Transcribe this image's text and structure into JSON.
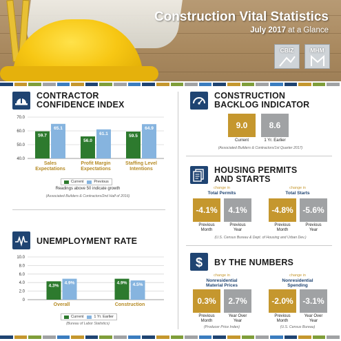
{
  "header": {
    "title": "Construction Vital Statistics",
    "subtitle_bold": "July 2017",
    "subtitle_rest": " at a Glance",
    "logos": [
      "CBIZ",
      "MHM"
    ]
  },
  "strip_colors": [
    "#1f4472",
    "#c5972e",
    "#7f9e3a",
    "#a0a2a4",
    "#3b7dbf",
    "#c5972e",
    "#1f4472",
    "#7f9e3a",
    "#a0a2a4",
    "#3b7dbf",
    "#1f4472",
    "#c5972e",
    "#7f9e3a",
    "#a0a2a4",
    "#3b7dbf",
    "#1f4472",
    "#c5972e",
    "#7f9e3a",
    "#a0a2a4",
    "#3b7dbf",
    "#1f4472",
    "#c5972e",
    "#7f9e3a",
    "#a0a2a4"
  ],
  "colors": {
    "current": "#2d7a2e",
    "previous": "#86b4df",
    "navy": "#1f4472",
    "gold": "#c5972e",
    "grey": "#a0a2a4"
  },
  "contractor": {
    "title_line1": "CONTRACTOR",
    "title_line2": "CONFIDENCE INDEX",
    "icon": "hardhat-icon",
    "note": "Readings above 50 indicate growth",
    "source": "(Associated Builders & Contractors/2nd Half of 2016)",
    "legend": [
      "Current",
      "Previous"
    ]
  },
  "unemployment": {
    "title": "UNEMPLOYMENT RATE",
    "icon": "line-chart-icon",
    "source": "(Bureau of Labor Statistics)",
    "legend": [
      "Current",
      "1 Yr. Earlier"
    ]
  },
  "chart_data": [
    {
      "type": "bar",
      "categories": [
        "Sales Expectations",
        "Profit Margin Expectations",
        "Staffing Level Intentions"
      ],
      "series": [
        {
          "name": "Current",
          "values": [
            59.7,
            56.0,
            59.5
          ],
          "labels": [
            "59.7",
            "56.0",
            "59.5"
          ]
        },
        {
          "name": "Previous",
          "values": [
            65.1,
            61.1,
            64.9
          ],
          "labels": [
            "65.1",
            "61.1",
            "64.9"
          ]
        }
      ],
      "yticks": [
        "40.0",
        "50.0",
        "60.0",
        "70.0"
      ],
      "ylim": [
        40,
        70
      ]
    },
    {
      "type": "bar",
      "categories": [
        "Overall",
        "Construction"
      ],
      "series": [
        {
          "name": "Current",
          "values": [
            4.3,
            4.9
          ],
          "labels": [
            "4.3%",
            "4.9%"
          ]
        },
        {
          "name": "1 Yr. Earlier",
          "values": [
            4.9,
            4.5
          ],
          "labels": [
            "4.9%",
            "4.5%"
          ]
        }
      ],
      "yticks": [
        "0",
        "2.0",
        "4.0",
        "6.0",
        "8.0",
        "10.0"
      ],
      "ylim": [
        0,
        10
      ]
    }
  ],
  "backlog": {
    "title_line1": "CONSTRUCTION",
    "title_line2": "BACKLOG INDICATOR",
    "icon": "gauge-icon",
    "current_value": "9.0",
    "current_label": "Current",
    "earlier_value": "8.6",
    "earlier_label": "1 Yr. Earlier",
    "source": "(Associated Builders & Contractors/1st Quarter 2017)"
  },
  "housing": {
    "title_line1": "HOUSING PERMITS",
    "title_line2": "AND STARTS",
    "icon": "documents-icon",
    "groups": [
      {
        "caption": "change in",
        "name": "Total Permits",
        "month_value": "-4.1%",
        "month_label_1": "Previous",
        "month_label_2": "Month",
        "year_value": "4.1%",
        "year_label_1": "Previous",
        "year_label_2": "Year"
      },
      {
        "caption": "change in",
        "name": "Total Starts",
        "month_value": "-4.8%",
        "month_label_1": "Previous",
        "month_label_2": "Month",
        "year_value": "-5.6%",
        "year_label_1": "Previous",
        "year_label_2": "Year"
      }
    ],
    "source": "(U.S. Census Bureau & Dept. of Housing and Urban Dev.)"
  },
  "numbers": {
    "title": "BY THE NUMBERS",
    "icon": "dollar-icon",
    "groups": [
      {
        "caption": "change in",
        "name_1": "Nonresidential",
        "name_2": "Material Prices",
        "month_value": "0.3%",
        "month_label_1": "Previous",
        "month_label_2": "Month",
        "year_value": "2.7%",
        "year_label_1": "Year Over",
        "year_label_2": "Year",
        "source": "(Producer Price Index)"
      },
      {
        "caption": "change in",
        "name_1": "Nonresidential",
        "name_2": "Spending",
        "month_value": "-2.0%",
        "month_label_1": "Previous",
        "month_label_2": "Month",
        "year_value": "-3.1%",
        "year_label_1": "Year Over",
        "year_label_2": "Year",
        "source": "(U.S. Census Bureau)"
      }
    ]
  }
}
